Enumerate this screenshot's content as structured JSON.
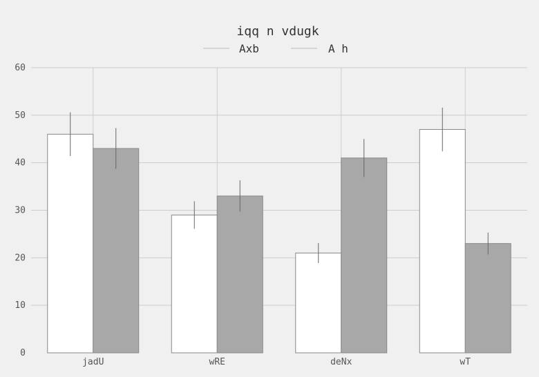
{
  "chart_data": {
    "type": "bar",
    "title": "iqq n vdugk",
    "xlabel": "",
    "ylabel": "",
    "categories": [
      "jadU",
      "wRE",
      "deNx",
      "wT"
    ],
    "ylim": [
      0,
      60
    ],
    "yticks": [
      0,
      10,
      20,
      30,
      40,
      50,
      60
    ],
    "grid": true,
    "legend_position": "top-center",
    "series": [
      {
        "name": "Axb",
        "values": [
          46,
          29,
          21,
          47
        ],
        "errors": [
          4.6,
          2.9,
          2.1,
          4.6
        ],
        "color": "#ffffff"
      },
      {
        "name": "A h",
        "values": [
          43,
          33,
          41,
          23
        ],
        "errors": [
          4.3,
          3.3,
          4.0,
          2.3
        ],
        "color": "#a8a8a8"
      }
    ]
  }
}
